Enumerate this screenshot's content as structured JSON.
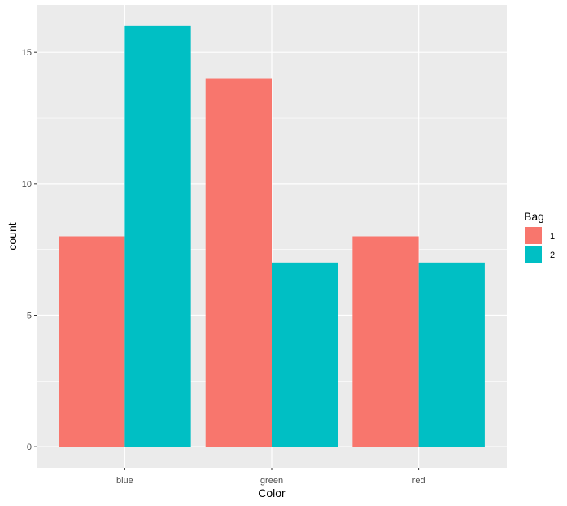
{
  "chart_data": {
    "type": "bar",
    "title": "",
    "xlabel": "Color",
    "ylabel": "count",
    "categories": [
      "blue",
      "green",
      "red"
    ],
    "series": [
      {
        "name": "1",
        "values": [
          8,
          14,
          8
        ],
        "color": "#F8766D"
      },
      {
        "name": "2",
        "values": [
          16,
          7,
          7
        ],
        "color": "#00BFC4"
      }
    ],
    "ylim": [
      -0.8,
      16.8
    ],
    "yticks": [
      0,
      5,
      10,
      15
    ],
    "grid": true,
    "legend": {
      "title": "Bag",
      "position": "right"
    },
    "panel_background": "#EBEBEB",
    "grid_color": "#FFFFFF"
  }
}
